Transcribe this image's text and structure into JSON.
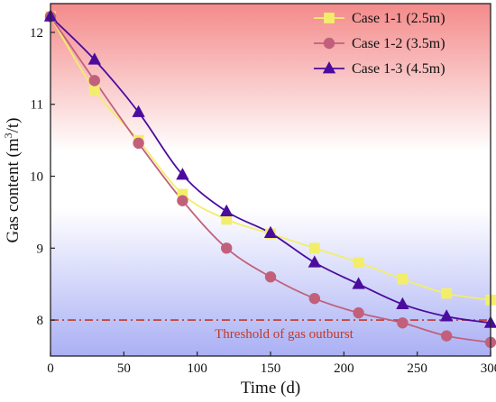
{
  "chart_data": {
    "type": "line",
    "xlabel": "Time (d)",
    "ylabel_main": "Gas content (m",
    "ylabel_sup": "3",
    "ylabel_tail": "/t)",
    "xlim": [
      0,
      300
    ],
    "ylim": [
      7.5,
      12.4
    ],
    "xticks": [
      0,
      50,
      100,
      150,
      200,
      250,
      300
    ],
    "yticks": [
      8,
      9,
      10,
      11,
      12
    ],
    "grid": false,
    "legend_position": "top-right",
    "background": "vertical gradient from red (top) through white to blue (bottom)",
    "threshold": {
      "value": 8.0,
      "label": "Threshold of gas outburst",
      "color": "#c0392b"
    },
    "series": [
      {
        "name": "Case 1-1 (2.5m)",
        "marker": "square",
        "color": "#f2ee6b",
        "x": [
          0,
          30,
          60,
          90,
          120,
          150,
          180,
          210,
          240,
          270,
          300
        ],
        "y": [
          12.22,
          11.2,
          10.5,
          9.75,
          9.4,
          9.2,
          9.0,
          8.8,
          8.57,
          8.37,
          8.28
        ]
      },
      {
        "name": "Case 1-2 (3.5m)",
        "marker": "circle",
        "color": "#c2607c",
        "x": [
          0,
          30,
          60,
          90,
          120,
          150,
          180,
          210,
          240,
          270,
          300
        ],
        "y": [
          12.22,
          11.33,
          10.46,
          9.66,
          9.0,
          8.6,
          8.3,
          8.1,
          7.96,
          7.78,
          7.69
        ]
      },
      {
        "name": "Case 1-3 (4.5m)",
        "marker": "triangle",
        "color": "#4b0c9e",
        "x": [
          0,
          30,
          60,
          90,
          120,
          150,
          180,
          210,
          240,
          270,
          300
        ],
        "y": [
          12.22,
          11.62,
          10.89,
          10.02,
          9.51,
          9.21,
          8.8,
          8.5,
          8.22,
          8.05,
          7.96
        ]
      }
    ]
  }
}
